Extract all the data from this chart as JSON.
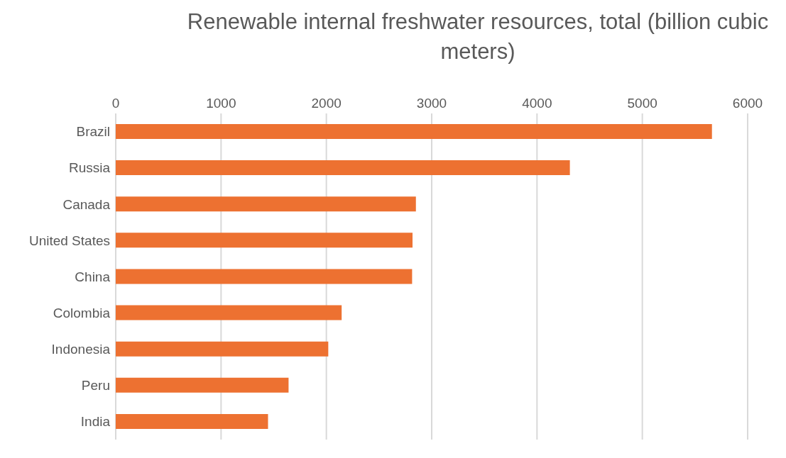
{
  "chart_data": {
    "type": "bar",
    "orientation": "horizontal",
    "title": "Renewable internal freshwater resources, total (billion cubic meters)",
    "categories": [
      "Brazil",
      "Russia",
      "Canada",
      "United States",
      "China",
      "Colombia",
      "Indonesia",
      "Peru",
      "India"
    ],
    "values": [
      5661,
      4312,
      2850,
      2818,
      2814,
      2145,
      2018,
      1641,
      1446
    ],
    "color": "#ed7131",
    "xlim": [
      0,
      6000
    ],
    "xticks": [
      0,
      1000,
      2000,
      3000,
      4000,
      5000,
      6000
    ],
    "grid": "x"
  }
}
